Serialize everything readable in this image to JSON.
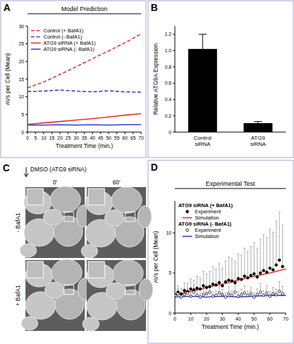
{
  "chart_data": [
    {
      "panel_label": "A",
      "type": "line",
      "title": "Model Prediction",
      "x_label": "Treatment Time (min.)",
      "y_label": "AVs per Cell (Mean)",
      "x": [
        0,
        10,
        20,
        30,
        40,
        50,
        60,
        70
      ],
      "xlim": [
        0,
        70
      ],
      "xticks": [
        0,
        5,
        10,
        15,
        20,
        25,
        30,
        35,
        40,
        45,
        50,
        55,
        60,
        65,
        70
      ],
      "ylim": [
        0,
        30
      ],
      "yticks": [
        0,
        5,
        10,
        15,
        20,
        25,
        30
      ],
      "legend": "top-left",
      "series": [
        {
          "name": "Control (+ BafA1)",
          "color": "#e8302a",
          "line_style": "dashed",
          "values": [
            12.5,
            14.2,
            16.3,
            18.5,
            20.8,
            23.0,
            25.3,
            27.8
          ]
        },
        {
          "name": "Control (- BafA1)",
          "color": "#2a3fd6",
          "line_style": "dashed",
          "values": [
            11.5,
            11.6,
            11.9,
            11.6,
            11.4,
            11.7,
            11.4,
            11.3
          ]
        },
        {
          "name": "ATG9 siRNA (+ BafA1)",
          "color": "#e8302a",
          "line_style": "solid",
          "values": [
            2.2,
            2.6,
            3.0,
            3.4,
            3.8,
            4.3,
            4.8,
            5.2
          ]
        },
        {
          "name": "ATG9 siRNA (- BafA1)",
          "color": "#2a3fd6",
          "line_style": "solid",
          "values": [
            2.0,
            2.0,
            2.1,
            2.0,
            2.1,
            2.0,
            2.1,
            2.1
          ]
        }
      ]
    },
    {
      "panel_label": "B",
      "type": "bar",
      "y_label": "Relative ATG9A Expression",
      "categories": [
        "Control siRNA",
        "ATG9 siRNA"
      ],
      "values": [
        1.02,
        0.11
      ],
      "errors": [
        0.18,
        0.02
      ],
      "color": "#000000",
      "ylim": [
        0,
        1.3
      ],
      "yticks": [
        0,
        0.2,
        0.4,
        0.6,
        0.8,
        {
          "value": 1,
          "label": "1.0"
        },
        1.2
      ]
    },
    {
      "panel_label": "D",
      "type": "line",
      "title": "Experimental Test",
      "x_label": "Treatment Time (min.)",
      "y_label": "AVs per Cell (Mean)",
      "x": [
        0,
        2,
        4,
        6,
        8,
        10,
        12,
        14,
        16,
        18,
        20,
        22,
        24,
        26,
        28,
        30,
        32,
        34,
        36,
        38,
        40,
        42,
        44,
        46,
        48,
        50,
        52,
        54,
        56,
        58,
        60,
        62,
        64,
        66,
        68
      ],
      "xlim": [
        0,
        70
      ],
      "xticks": [
        0,
        10,
        20,
        30,
        40,
        50,
        60,
        70
      ],
      "ylim": [
        0,
        14
      ],
      "yticks": [
        0,
        5,
        10
      ],
      "legend": "top-left",
      "series": [
        {
          "name": "Experiment",
          "group": "ATG9 siRNA (+ BafA1)",
          "type": "scatter",
          "marker": "filled-circle",
          "color": "#000000",
          "values": [
            2.3,
            2.6,
            2.4,
            2.8,
            2.7,
            3.0,
            2.9,
            3.1,
            3.0,
            3.4,
            3.2,
            3.3,
            3.6,
            3.5,
            3.8,
            3.4,
            3.9,
            4.1,
            4.0,
            3.8,
            4.3,
            4.2,
            4.6,
            4.4,
            4.7,
            4.9,
            4.5,
            5.0,
            5.3,
            5.1,
            5.6,
            5.4,
            6.0,
            6.6,
            5.8
          ],
          "errors": [
            0.6,
            0.8,
            0.7,
            1.0,
            1.0,
            1.3,
            1.2,
            1.5,
            1.4,
            1.8,
            1.7,
            1.9,
            2.2,
            2.0,
            2.4,
            2.2,
            2.6,
            2.9,
            2.8,
            2.7,
            3.1,
            3.0,
            3.5,
            3.3,
            3.6,
            3.9,
            3.6,
            4.2,
            4.5,
            4.3,
            4.9,
            4.7,
            5.5,
            6.0,
            5.2
          ]
        },
        {
          "name": "Simulation",
          "group": "ATG9 siRNA (+ BafA1)",
          "type": "line",
          "line_style": "solid",
          "color": "#e8302a",
          "x": [
            0,
            10,
            20,
            30,
            40,
            50,
            60,
            70
          ],
          "values": [
            2.2,
            2.7,
            3.2,
            3.6,
            4.1,
            4.6,
            5.0,
            5.5
          ]
        },
        {
          "name": "Experiment",
          "group": "ATG9 siRNA (- BafA1)",
          "type": "scatter",
          "marker": "open-circle",
          "color": "#000000",
          "values": [
            2.2,
            2.4,
            2.0,
            2.3,
            2.5,
            2.1,
            2.6,
            2.2,
            2.0,
            2.3,
            2.4,
            2.6,
            2.1,
            2.2,
            2.5,
            2.3,
            2.0,
            2.4,
            2.2,
            2.6,
            2.1,
            2.3,
            2.5,
            2.2,
            2.4,
            2.0,
            2.3,
            2.6,
            2.2,
            2.5,
            2.1,
            2.4,
            2.3,
            2.7,
            2.4
          ],
          "errors": [
            0.5,
            0.6,
            0.4,
            0.7,
            0.6,
            0.5,
            0.8,
            0.6,
            0.5,
            0.7,
            0.6,
            0.9,
            0.5,
            0.6,
            0.8,
            0.7,
            0.5,
            0.9,
            0.6,
            1.0,
            0.6,
            0.7,
            0.9,
            0.6,
            0.8,
            0.5,
            0.7,
            1.1,
            0.6,
            0.9,
            0.6,
            0.8,
            0.7,
            1.2,
            0.9
          ]
        },
        {
          "name": "Simulation",
          "group": "ATG9 siRNA (- BafA1)",
          "type": "line",
          "line_style": "solid",
          "color": "#2a3fd6",
          "x": [
            0,
            10,
            20,
            30,
            40,
            50,
            60,
            70
          ],
          "values": [
            2.0,
            2.1,
            2.0,
            2.1,
            2.0,
            2.1,
            2.2,
            2.2
          ]
        }
      ]
    }
  ],
  "panel_c": {
    "panel_label": "C",
    "title": "DMSO (ATG9 siRNA)",
    "columns": [
      "0'",
      "60'"
    ],
    "rows": [
      "- BafA1",
      "+ BafA1"
    ]
  }
}
